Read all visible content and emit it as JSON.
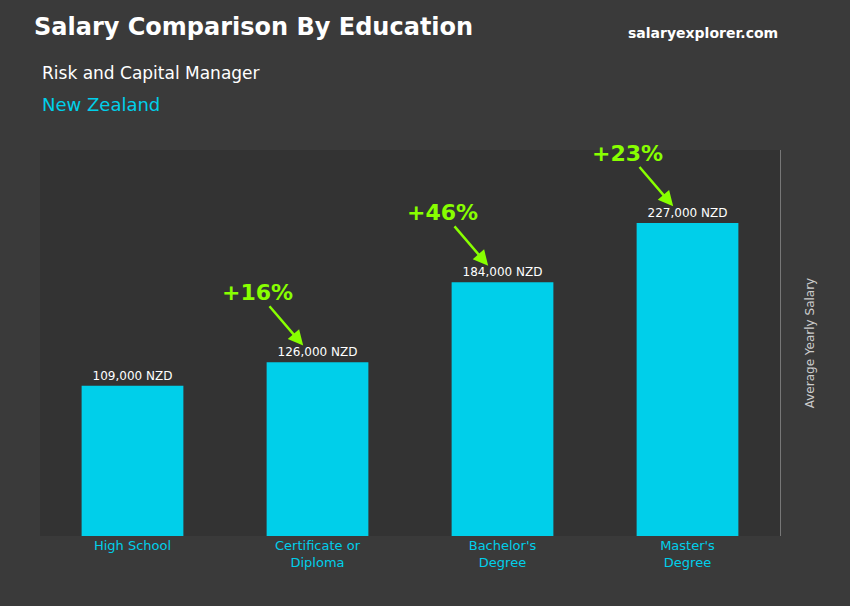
{
  "chart_data": {
    "type": "bar",
    "title": "Salary Comparison By Education",
    "subtitle": [
      "Risk and Capital Manager",
      "New Zealand"
    ],
    "watermark": "salaryexplorer.com",
    "ylabel": "Average Yearly Salary",
    "categories": [
      "High School",
      "Certificate or\nDiploma",
      "Bachelor's\nDegree",
      "Master's\nDegree"
    ],
    "values": [
      109000,
      126000,
      184000,
      227000
    ],
    "value_labels": [
      "109,000 NZD",
      "126,000 NZD",
      "184,000 NZD",
      "227,000 NZD"
    ],
    "data_labels": true,
    "annotations": [
      "+16%",
      "+46%",
      "+23%"
    ],
    "color": "#00cfea",
    "ylim": [
      0,
      280000
    ],
    "tick_labels": "x",
    "grid": false
  }
}
